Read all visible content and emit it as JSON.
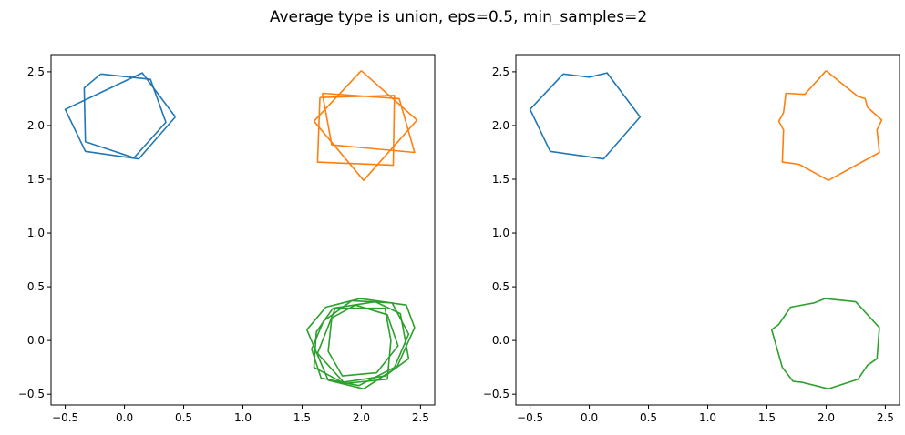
{
  "title": "Average type is union, eps=0.5, min_samples=2",
  "colors": {
    "blue": "#1f77b4",
    "orange": "#ff7f0e",
    "green": "#2ca02c"
  },
  "chart_data": [
    {
      "type": "line",
      "title": "",
      "xlabel": "",
      "ylabel": "",
      "xlim": [
        -0.62,
        2.62
      ],
      "ylim": [
        -0.6,
        2.66
      ],
      "xticks": [
        -0.5,
        0.0,
        0.5,
        1.0,
        1.5,
        2.0,
        2.5
      ],
      "yticks": [
        -0.5,
        0.0,
        0.5,
        1.0,
        1.5,
        2.0,
        2.5
      ],
      "xtick_labels": [
        "−0.5",
        "0.0",
        "0.5",
        "1.0",
        "1.5",
        "2.0",
        "2.5"
      ],
      "ytick_labels": [
        "−0.5",
        "0.0",
        "0.5",
        "1.0",
        "1.5",
        "2.0",
        "2.5"
      ],
      "grid": false,
      "series": [
        {
          "color": "blue",
          "points": [
            [
              0.43,
              2.08
            ],
            [
              0.15,
              2.49
            ],
            [
              -0.5,
              2.15
            ],
            [
              -0.33,
              1.76
            ],
            [
              0.12,
              1.69
            ],
            [
              0.43,
              2.08
            ]
          ]
        },
        {
          "color": "blue",
          "points": [
            [
              -0.2,
              2.48
            ],
            [
              0.22,
              2.43
            ],
            [
              0.35,
              2.03
            ],
            [
              0.08,
              1.7
            ],
            [
              -0.33,
              1.85
            ],
            [
              -0.34,
              2.35
            ],
            [
              -0.2,
              2.48
            ]
          ]
        },
        {
          "color": "orange",
          "points": [
            [
              2.0,
              2.51
            ],
            [
              2.47,
              2.05
            ],
            [
              2.02,
              1.49
            ],
            [
              1.6,
              2.04
            ],
            [
              2.0,
              2.51
            ]
          ]
        },
        {
          "color": "orange",
          "points": [
            [
              1.67,
              2.3
            ],
            [
              2.32,
              2.25
            ],
            [
              2.45,
              1.75
            ],
            [
              1.75,
              1.82
            ],
            [
              1.67,
              2.3
            ]
          ]
        },
        {
          "color": "orange",
          "points": [
            [
              1.65,
              2.26
            ],
            [
              2.28,
              2.28
            ],
            [
              2.27,
              1.63
            ],
            [
              1.63,
              1.66
            ],
            [
              1.65,
              2.26
            ]
          ]
        },
        {
          "color": "green",
          "points": [
            [
              1.99,
              0.39
            ],
            [
              2.38,
              0.33
            ],
            [
              2.45,
              0.12
            ],
            [
              2.3,
              -0.25
            ],
            [
              2.02,
              -0.45
            ],
            [
              1.72,
              -0.37
            ],
            [
              1.54,
              0.1
            ],
            [
              1.7,
              0.31
            ],
            [
              1.99,
              0.39
            ]
          ]
        },
        {
          "color": "green",
          "points": [
            [
              1.76,
              0.3
            ],
            [
              2.12,
              0.36
            ],
            [
              2.33,
              0.25
            ],
            [
              2.4,
              -0.17
            ],
            [
              2.2,
              -0.33
            ],
            [
              1.84,
              -0.39
            ],
            [
              1.6,
              -0.25
            ],
            [
              1.62,
              0.08
            ],
            [
              1.76,
              0.3
            ]
          ]
        },
        {
          "color": "green",
          "points": [
            [
              1.92,
              0.37
            ],
            [
              2.26,
              0.35
            ],
            [
              2.4,
              0.06
            ],
            [
              2.28,
              -0.25
            ],
            [
              1.98,
              -0.42
            ],
            [
              1.66,
              -0.35
            ],
            [
              1.58,
              -0.08
            ],
            [
              1.68,
              0.18
            ],
            [
              1.92,
              0.37
            ]
          ]
        },
        {
          "color": "green",
          "points": [
            [
              1.95,
              0.33
            ],
            [
              2.22,
              0.24
            ],
            [
              2.31,
              -0.05
            ],
            [
              2.13,
              -0.3
            ],
            [
              1.84,
              -0.33
            ],
            [
              1.72,
              -0.1
            ],
            [
              1.75,
              0.21
            ],
            [
              1.95,
              0.33
            ]
          ]
        },
        {
          "color": "green",
          "points": [
            [
              1.78,
              0.3
            ],
            [
              2.2,
              0.3
            ],
            [
              2.25,
              0.0
            ],
            [
              2.22,
              -0.36
            ],
            [
              1.86,
              -0.4
            ],
            [
              1.63,
              -0.12
            ],
            [
              1.78,
              0.3
            ]
          ]
        }
      ]
    },
    {
      "type": "line",
      "title": "",
      "xlabel": "",
      "ylabel": "",
      "xlim": [
        -0.62,
        2.62
      ],
      "ylim": [
        -0.6,
        2.66
      ],
      "xticks": [
        -0.5,
        0.0,
        0.5,
        1.0,
        1.5,
        2.0,
        2.5
      ],
      "yticks": [
        -0.5,
        0.0,
        0.5,
        1.0,
        1.5,
        2.0,
        2.5
      ],
      "xtick_labels": [
        "−0.5",
        "0.0",
        "0.5",
        "1.0",
        "1.5",
        "2.0",
        "2.5"
      ],
      "ytick_labels": [
        "−0.5",
        "0.0",
        "0.5",
        "1.0",
        "1.5",
        "2.0",
        "2.5"
      ],
      "grid": false,
      "series": [
        {
          "color": "blue",
          "points": [
            [
              -0.22,
              2.48
            ],
            [
              0.0,
              2.45
            ],
            [
              0.15,
              2.49
            ],
            [
              0.43,
              2.08
            ],
            [
              0.12,
              1.69
            ],
            [
              -0.33,
              1.76
            ],
            [
              -0.5,
              2.15
            ],
            [
              -0.22,
              2.48
            ]
          ]
        },
        {
          "color": "orange",
          "points": [
            [
              2.0,
              2.51
            ],
            [
              2.27,
              2.27
            ],
            [
              2.33,
              2.25
            ],
            [
              2.35,
              2.17
            ],
            [
              2.47,
              2.05
            ],
            [
              2.43,
              1.96
            ],
            [
              2.45,
              1.75
            ],
            [
              2.02,
              1.49
            ],
            [
              1.77,
              1.64
            ],
            [
              1.63,
              1.66
            ],
            [
              1.64,
              1.96
            ],
            [
              1.6,
              2.04
            ],
            [
              1.64,
              2.12
            ],
            [
              1.66,
              2.3
            ],
            [
              1.82,
              2.29
            ],
            [
              2.0,
              2.51
            ]
          ]
        },
        {
          "color": "green",
          "points": [
            [
              1.99,
              0.39
            ],
            [
              2.25,
              0.36
            ],
            [
              2.45,
              0.12
            ],
            [
              2.43,
              -0.17
            ],
            [
              2.35,
              -0.23
            ],
            [
              2.27,
              -0.36
            ],
            [
              2.02,
              -0.45
            ],
            [
              1.8,
              -0.39
            ],
            [
              1.72,
              -0.38
            ],
            [
              1.63,
              -0.25
            ],
            [
              1.54,
              0.1
            ],
            [
              1.6,
              0.15
            ],
            [
              1.7,
              0.31
            ],
            [
              1.9,
              0.35
            ],
            [
              1.99,
              0.39
            ]
          ]
        }
      ]
    }
  ]
}
